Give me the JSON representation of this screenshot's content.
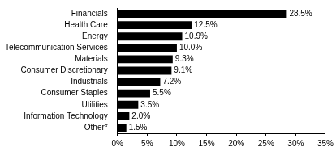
{
  "chart_data": {
    "type": "bar",
    "orientation": "horizontal",
    "categories": [
      "Financials",
      "Health Care",
      "Energy",
      "Telecommunication Services",
      "Materials",
      "Consumer Discretionary",
      "Industrials",
      "Consumer Staples",
      "Utilities",
      "Information Technology",
      "Other*"
    ],
    "values": [
      28.5,
      12.5,
      10.9,
      10.0,
      9.3,
      9.1,
      7.2,
      5.5,
      3.5,
      2.0,
      1.5
    ],
    "value_labels": [
      "28.5%",
      "12.5%",
      "10.9%",
      "10.0%",
      "9.3%",
      "9.1%",
      "7.2%",
      "5.5%",
      "3.5%",
      "2.0%",
      "1.5%"
    ],
    "color": "#000000",
    "xlim": [
      0,
      35
    ],
    "xticks": [
      {
        "value": 0,
        "label": "0%"
      },
      {
        "value": 5,
        "label": "5%"
      },
      {
        "value": 10,
        "label": "10%"
      },
      {
        "value": 15,
        "label": "15%"
      },
      {
        "value": 20,
        "label": "20%"
      },
      {
        "value": 25,
        "label": "25%"
      },
      {
        "value": 30,
        "label": "30%"
      },
      {
        "value": 35,
        "label": "35%"
      }
    ],
    "grid": false,
    "data_labels": true
  }
}
